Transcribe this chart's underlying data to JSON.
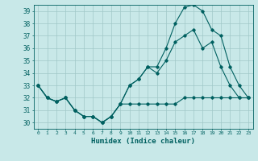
{
  "title": "",
  "xlabel": "Humidex (Indice chaleur)",
  "ylabel": "",
  "bg_color": "#c8e8e8",
  "line_color": "#006060",
  "grid_color": "#a0c8c8",
  "xlim": [
    -0.5,
    23.5
  ],
  "ylim": [
    29.5,
    39.5
  ],
  "yticks": [
    30,
    31,
    32,
    33,
    34,
    35,
    36,
    37,
    38,
    39
  ],
  "xtick_labels": [
    "0",
    "1",
    "2",
    "3",
    "4",
    "5",
    "6",
    "7",
    "8",
    "9",
    "10",
    "11",
    "12",
    "13",
    "14",
    "15",
    "16",
    "17",
    "18",
    "19",
    "20",
    "21",
    "22",
    "23"
  ],
  "series1": [
    33,
    32,
    31.7,
    32,
    31,
    30.5,
    30.5,
    30,
    30.5,
    31.5,
    31.5,
    31.5,
    31.5,
    31.5,
    31.5,
    31.5,
    32,
    32,
    32,
    32,
    32,
    32,
    32,
    32
  ],
  "series2": [
    33,
    32,
    31.7,
    32,
    31,
    30.5,
    30.5,
    30,
    30.5,
    31.5,
    33,
    33.5,
    34.5,
    34,
    35,
    36.5,
    37,
    37.5,
    36,
    36.5,
    34.5,
    33,
    32,
    32
  ],
  "series3": [
    33,
    32,
    31.7,
    32,
    31,
    30.5,
    30.5,
    30,
    30.5,
    31.5,
    33,
    33.5,
    34.5,
    34.5,
    36,
    38,
    39.3,
    39.5,
    39,
    37.5,
    37,
    34.5,
    33,
    32
  ]
}
